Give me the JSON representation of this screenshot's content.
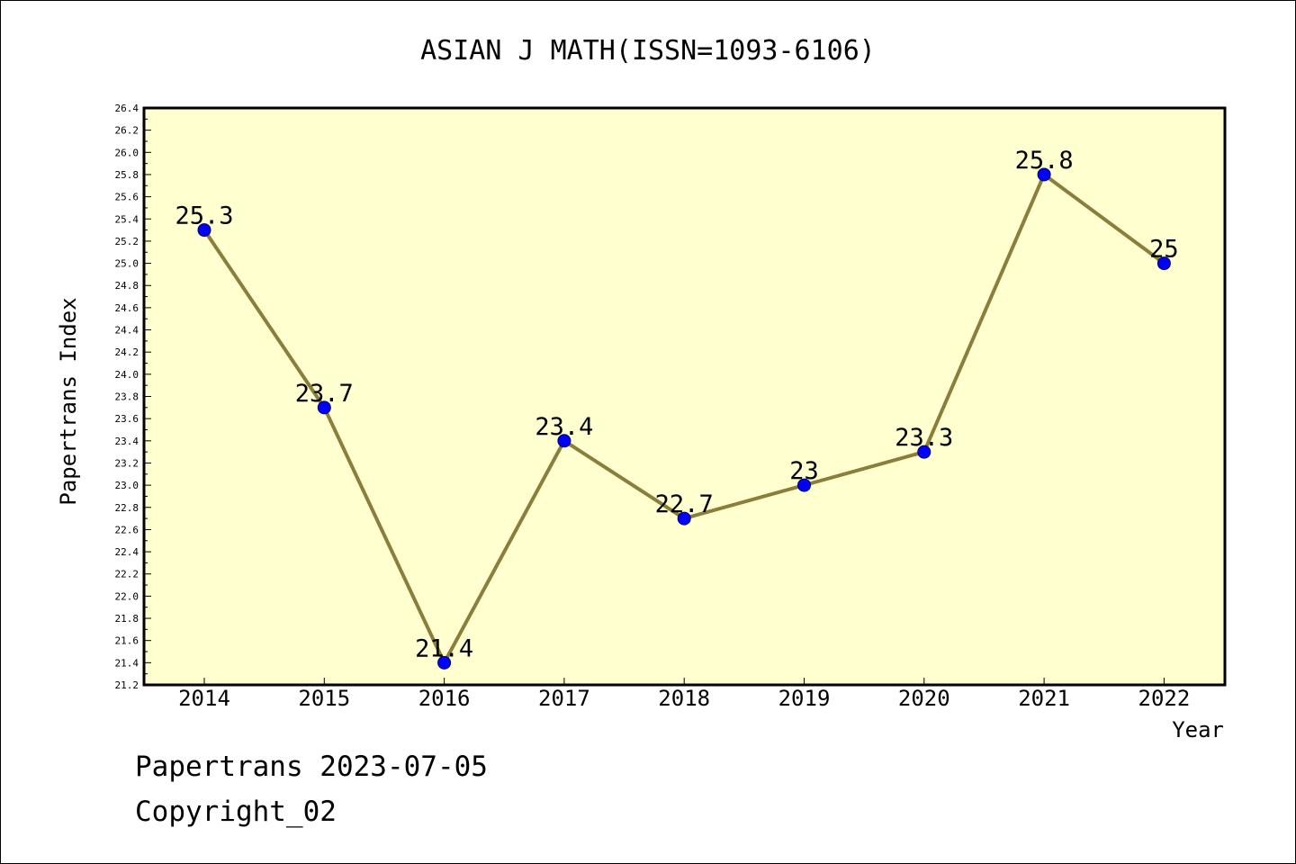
{
  "chart_data": {
    "type": "line",
    "title": "ASIAN J MATH(ISSN=1093-6106)",
    "xlabel": "Year",
    "ylabel": "Papertrans Index",
    "categories": [
      "2014",
      "2015",
      "2016",
      "2017",
      "2018",
      "2019",
      "2020",
      "2021",
      "2022"
    ],
    "series": [
      {
        "values": [
          25.3,
          23.7,
          21.4,
          23.4,
          22.7,
          23.0,
          23.3,
          25.8,
          25.0
        ],
        "labels": [
          "25.3",
          "23.7",
          "21.4",
          "23.4",
          "22.7",
          "23",
          "23.3",
          "25.8",
          "25"
        ]
      }
    ],
    "ylim": [
      21.2,
      26.4
    ],
    "y_major_step": 0.2,
    "yticks": [
      "21.2",
      "21.4",
      "21.6",
      "21.8",
      "22.0",
      "22.2",
      "22.4",
      "22.6",
      "22.8",
      "23.0",
      "23.2",
      "23.4",
      "23.6",
      "23.8",
      "24.0",
      "24.2",
      "24.4",
      "24.6",
      "24.8",
      "25.0",
      "25.2",
      "25.4",
      "25.6",
      "25.8",
      "26.0",
      "26.2",
      "26.4"
    ],
    "grid": false,
    "legend": "none",
    "colors": {
      "plot_background": "#ffffd0",
      "line": "#8b7d3a",
      "marker_fill": "#0000ff",
      "marker_edge": "#000066"
    }
  },
  "footer": {
    "line1": "Papertrans 2023-07-05",
    "line2": "Copyright_02"
  }
}
